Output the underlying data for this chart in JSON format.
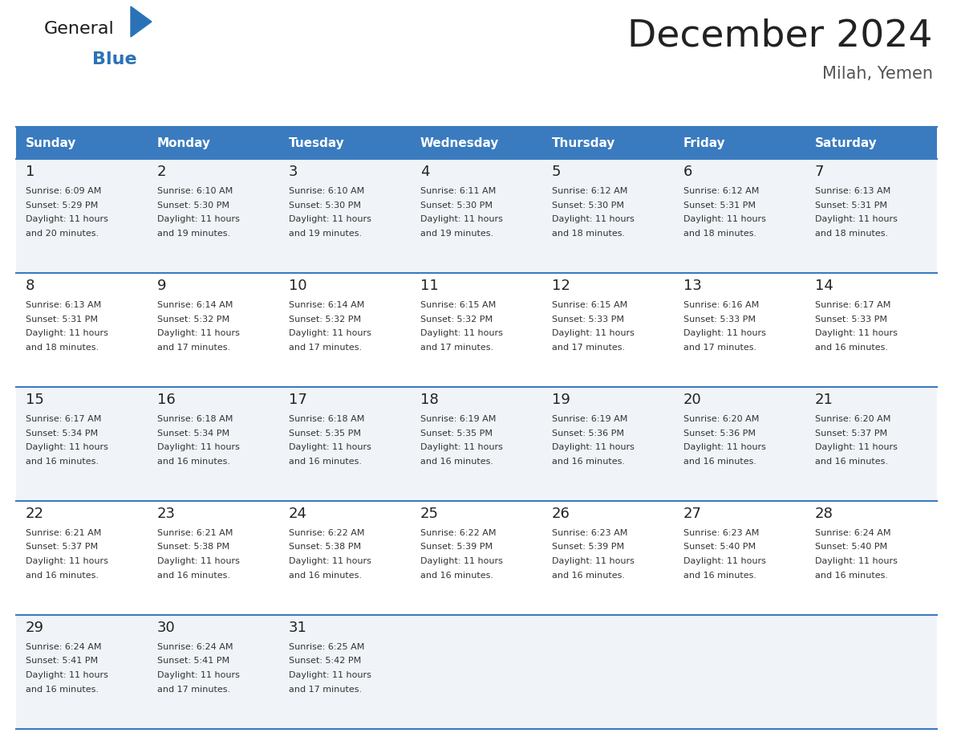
{
  "title": "December 2024",
  "subtitle": "Milah, Yemen",
  "header_bg": "#3a7bbf",
  "header_text_color": "#ffffff",
  "days_of_week": [
    "Sunday",
    "Monday",
    "Tuesday",
    "Wednesday",
    "Thursday",
    "Friday",
    "Saturday"
  ],
  "cell_bg_odd": "#f0f4f8",
  "cell_bg_even": "#ffffff",
  "divider_color": "#3a7bbf",
  "background_color": "#ffffff",
  "title_color": "#222222",
  "subtitle_color": "#555555",
  "day_number_color": "#222222",
  "cell_text_color": "#333333",
  "calendar": [
    [
      {
        "day": "1",
        "sunrise": "6:09 AM",
        "sunset": "5:29 PM",
        "daylight_line1": "Daylight: 11 hours",
        "daylight_line2": "and 20 minutes."
      },
      {
        "day": "2",
        "sunrise": "6:10 AM",
        "sunset": "5:30 PM",
        "daylight_line1": "Daylight: 11 hours",
        "daylight_line2": "and 19 minutes."
      },
      {
        "day": "3",
        "sunrise": "6:10 AM",
        "sunset": "5:30 PM",
        "daylight_line1": "Daylight: 11 hours",
        "daylight_line2": "and 19 minutes."
      },
      {
        "day": "4",
        "sunrise": "6:11 AM",
        "sunset": "5:30 PM",
        "daylight_line1": "Daylight: 11 hours",
        "daylight_line2": "and 19 minutes."
      },
      {
        "day": "5",
        "sunrise": "6:12 AM",
        "sunset": "5:30 PM",
        "daylight_line1": "Daylight: 11 hours",
        "daylight_line2": "and 18 minutes."
      },
      {
        "day": "6",
        "sunrise": "6:12 AM",
        "sunset": "5:31 PM",
        "daylight_line1": "Daylight: 11 hours",
        "daylight_line2": "and 18 minutes."
      },
      {
        "day": "7",
        "sunrise": "6:13 AM",
        "sunset": "5:31 PM",
        "daylight_line1": "Daylight: 11 hours",
        "daylight_line2": "and 18 minutes."
      }
    ],
    [
      {
        "day": "8",
        "sunrise": "6:13 AM",
        "sunset": "5:31 PM",
        "daylight_line1": "Daylight: 11 hours",
        "daylight_line2": "and 18 minutes."
      },
      {
        "day": "9",
        "sunrise": "6:14 AM",
        "sunset": "5:32 PM",
        "daylight_line1": "Daylight: 11 hours",
        "daylight_line2": "and 17 minutes."
      },
      {
        "day": "10",
        "sunrise": "6:14 AM",
        "sunset": "5:32 PM",
        "daylight_line1": "Daylight: 11 hours",
        "daylight_line2": "and 17 minutes."
      },
      {
        "day": "11",
        "sunrise": "6:15 AM",
        "sunset": "5:32 PM",
        "daylight_line1": "Daylight: 11 hours",
        "daylight_line2": "and 17 minutes."
      },
      {
        "day": "12",
        "sunrise": "6:15 AM",
        "sunset": "5:33 PM",
        "daylight_line1": "Daylight: 11 hours",
        "daylight_line2": "and 17 minutes."
      },
      {
        "day": "13",
        "sunrise": "6:16 AM",
        "sunset": "5:33 PM",
        "daylight_line1": "Daylight: 11 hours",
        "daylight_line2": "and 17 minutes."
      },
      {
        "day": "14",
        "sunrise": "6:17 AM",
        "sunset": "5:33 PM",
        "daylight_line1": "Daylight: 11 hours",
        "daylight_line2": "and 16 minutes."
      }
    ],
    [
      {
        "day": "15",
        "sunrise": "6:17 AM",
        "sunset": "5:34 PM",
        "daylight_line1": "Daylight: 11 hours",
        "daylight_line2": "and 16 minutes."
      },
      {
        "day": "16",
        "sunrise": "6:18 AM",
        "sunset": "5:34 PM",
        "daylight_line1": "Daylight: 11 hours",
        "daylight_line2": "and 16 minutes."
      },
      {
        "day": "17",
        "sunrise": "6:18 AM",
        "sunset": "5:35 PM",
        "daylight_line1": "Daylight: 11 hours",
        "daylight_line2": "and 16 minutes."
      },
      {
        "day": "18",
        "sunrise": "6:19 AM",
        "sunset": "5:35 PM",
        "daylight_line1": "Daylight: 11 hours",
        "daylight_line2": "and 16 minutes."
      },
      {
        "day": "19",
        "sunrise": "6:19 AM",
        "sunset": "5:36 PM",
        "daylight_line1": "Daylight: 11 hours",
        "daylight_line2": "and 16 minutes."
      },
      {
        "day": "20",
        "sunrise": "6:20 AM",
        "sunset": "5:36 PM",
        "daylight_line1": "Daylight: 11 hours",
        "daylight_line2": "and 16 minutes."
      },
      {
        "day": "21",
        "sunrise": "6:20 AM",
        "sunset": "5:37 PM",
        "daylight_line1": "Daylight: 11 hours",
        "daylight_line2": "and 16 minutes."
      }
    ],
    [
      {
        "day": "22",
        "sunrise": "6:21 AM",
        "sunset": "5:37 PM",
        "daylight_line1": "Daylight: 11 hours",
        "daylight_line2": "and 16 minutes."
      },
      {
        "day": "23",
        "sunrise": "6:21 AM",
        "sunset": "5:38 PM",
        "daylight_line1": "Daylight: 11 hours",
        "daylight_line2": "and 16 minutes."
      },
      {
        "day": "24",
        "sunrise": "6:22 AM",
        "sunset": "5:38 PM",
        "daylight_line1": "Daylight: 11 hours",
        "daylight_line2": "and 16 minutes."
      },
      {
        "day": "25",
        "sunrise": "6:22 AM",
        "sunset": "5:39 PM",
        "daylight_line1": "Daylight: 11 hours",
        "daylight_line2": "and 16 minutes."
      },
      {
        "day": "26",
        "sunrise": "6:23 AM",
        "sunset": "5:39 PM",
        "daylight_line1": "Daylight: 11 hours",
        "daylight_line2": "and 16 minutes."
      },
      {
        "day": "27",
        "sunrise": "6:23 AM",
        "sunset": "5:40 PM",
        "daylight_line1": "Daylight: 11 hours",
        "daylight_line2": "and 16 minutes."
      },
      {
        "day": "28",
        "sunrise": "6:24 AM",
        "sunset": "5:40 PM",
        "daylight_line1": "Daylight: 11 hours",
        "daylight_line2": "and 16 minutes."
      }
    ],
    [
      {
        "day": "29",
        "sunrise": "6:24 AM",
        "sunset": "5:41 PM",
        "daylight_line1": "Daylight: 11 hours",
        "daylight_line2": "and 16 minutes."
      },
      {
        "day": "30",
        "sunrise": "6:24 AM",
        "sunset": "5:41 PM",
        "daylight_line1": "Daylight: 11 hours",
        "daylight_line2": "and 17 minutes."
      },
      {
        "day": "31",
        "sunrise": "6:25 AM",
        "sunset": "5:42 PM",
        "daylight_line1": "Daylight: 11 hours",
        "daylight_line2": "and 17 minutes."
      },
      null,
      null,
      null,
      null
    ]
  ],
  "logo_general_color": "#1a1a1a",
  "logo_blue_color": "#2a72b8"
}
